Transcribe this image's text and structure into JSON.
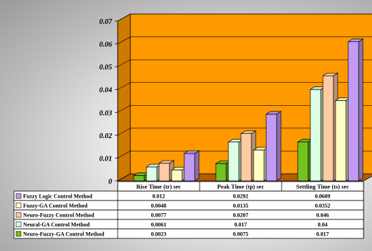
{
  "chart_data": {
    "type": "bar",
    "title": "",
    "xlabel": "",
    "ylabel": "",
    "ylim": [
      0,
      0.07
    ],
    "yticks": [
      "0",
      "0.01",
      "0.02",
      "0.03",
      "0.04",
      "0.05",
      "0.06",
      "0.07"
    ],
    "grid": true,
    "style": "3d-clustered-column-with-data-table",
    "categories": [
      "Rise Time (tr) sec",
      "Peak Time (tp) sec",
      "Settling Time (ts) sec"
    ],
    "series": [
      {
        "name": "Fuzzy Logic Control Method",
        "values": [
          0.012,
          0.0292,
          0.0609
        ],
        "labels": [
          "0.012",
          "0.0292",
          "0.0609"
        ],
        "color": "#c39bf5"
      },
      {
        "name": "Fuzzy-GA Control Method",
        "values": [
          0.0048,
          0.0135,
          0.0352
        ],
        "labels": [
          "0.0048",
          "0.0135",
          "0.0352"
        ],
        "color": "#ffffc4"
      },
      {
        "name": "Neuro-Fuzzy Control Method",
        "values": [
          0.0077,
          0.0207,
          0.046
        ],
        "labels": [
          "0.0077",
          "0.0207",
          "0.046"
        ],
        "color": "#ffcba3"
      },
      {
        "name": "Neural-GA Control Method",
        "values": [
          0.0061,
          0.017,
          0.04
        ],
        "labels": [
          "0.0061",
          "0.017",
          "0.04"
        ],
        "color": "#dcffe3"
      },
      {
        "name": "Neuro-Fuzzy-GA Control Method",
        "values": [
          0.0023,
          0.0075,
          0.017
        ],
        "labels": [
          "0.0023",
          "0.0075",
          "0.017"
        ],
        "color": "#73c21d"
      }
    ],
    "colors": {
      "plot_area": "#ff9900",
      "plot_side_wall": "#cc7a00",
      "floor": "#b85c00",
      "gridline": "#000000"
    }
  }
}
